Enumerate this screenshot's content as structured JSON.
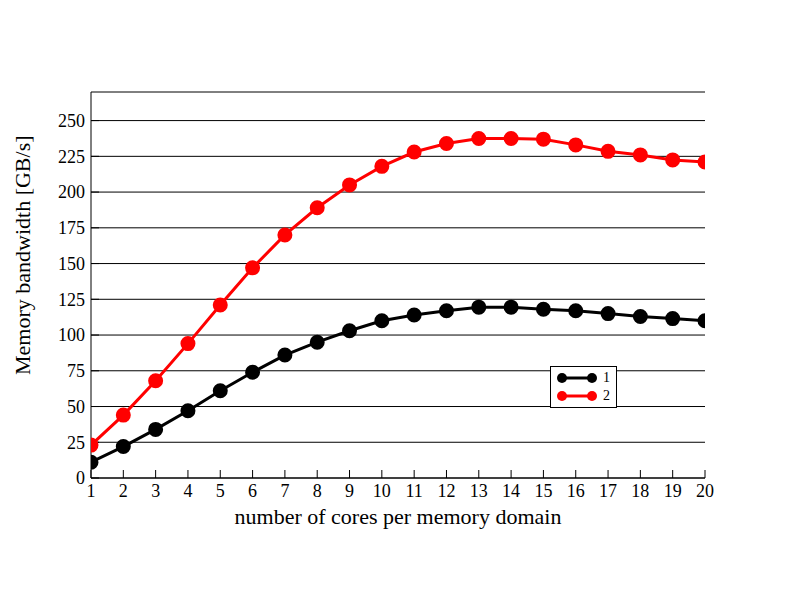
{
  "chart_data": {
    "type": "line",
    "x_label": "number of cores per memory domain",
    "y_label": "Memory bandwidth [GB/s]",
    "x": [
      1,
      2,
      3,
      4,
      5,
      6,
      7,
      8,
      9,
      10,
      11,
      12,
      13,
      14,
      15,
      16,
      17,
      18,
      19,
      20
    ],
    "series": [
      {
        "name": "1",
        "color": "#000000",
        "marker": "circle",
        "values": [
          11,
          22,
          34,
          47,
          61,
          74,
          86,
          95,
          103,
          110,
          114,
          117,
          119.5,
          119.5,
          118,
          117,
          115,
          113,
          111.5,
          110
        ]
      },
      {
        "name": "2",
        "color": "#ff0000",
        "marker": "circle",
        "values": [
          23,
          44,
          68,
          94,
          121,
          147,
          170,
          189,
          205,
          218,
          228,
          234,
          237.5,
          237.5,
          237,
          233,
          228.5,
          226,
          222.5,
          221
        ]
      }
    ],
    "xlim": [
      1,
      20
    ],
    "xticks": [
      1,
      2,
      3,
      4,
      5,
      6,
      7,
      8,
      9,
      10,
      11,
      12,
      13,
      14,
      15,
      16,
      17,
      18,
      19,
      20
    ],
    "ylim": [
      0,
      270
    ],
    "yticks": [
      0,
      25,
      50,
      75,
      100,
      125,
      150,
      175,
      200,
      225,
      250
    ],
    "grid": true,
    "legend": "lower right"
  }
}
